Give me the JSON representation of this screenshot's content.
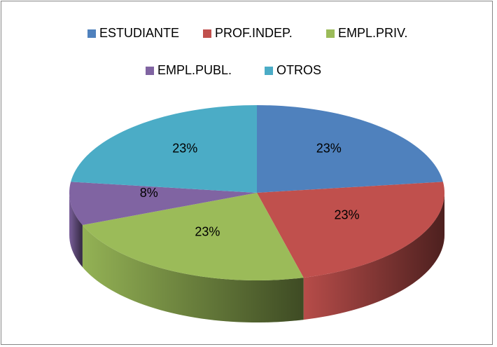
{
  "chart_data": {
    "type": "pie",
    "categories": [
      "ESTUDIANTE",
      "PROF.INDEP.",
      "EMPL.PRIV.",
      "EMPL.PUBL.",
      "OTROS"
    ],
    "values": [
      23,
      23,
      23,
      8,
      23
    ],
    "value_labels": [
      "23%",
      "23%",
      "23%",
      "8%",
      "23%"
    ],
    "colors": [
      "#4f81bd",
      "#c0504d",
      "#9bbb59",
      "#8064a2",
      "#4bacc6"
    ],
    "legend": "top"
  }
}
